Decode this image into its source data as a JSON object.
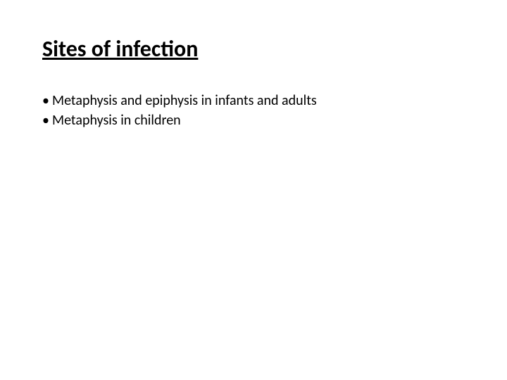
{
  "slide": {
    "title": "Sites of infection",
    "title_fontsize": 32,
    "title_fontweight": "bold",
    "title_underline": true,
    "bullets": [
      "Metaphysis and epiphysis in infants and adults",
      "Metaphysis in children"
    ],
    "bullet_fontsize": 20,
    "bullet_marker": "•",
    "text_color": "#000000",
    "background_color": "#ffffff"
  }
}
